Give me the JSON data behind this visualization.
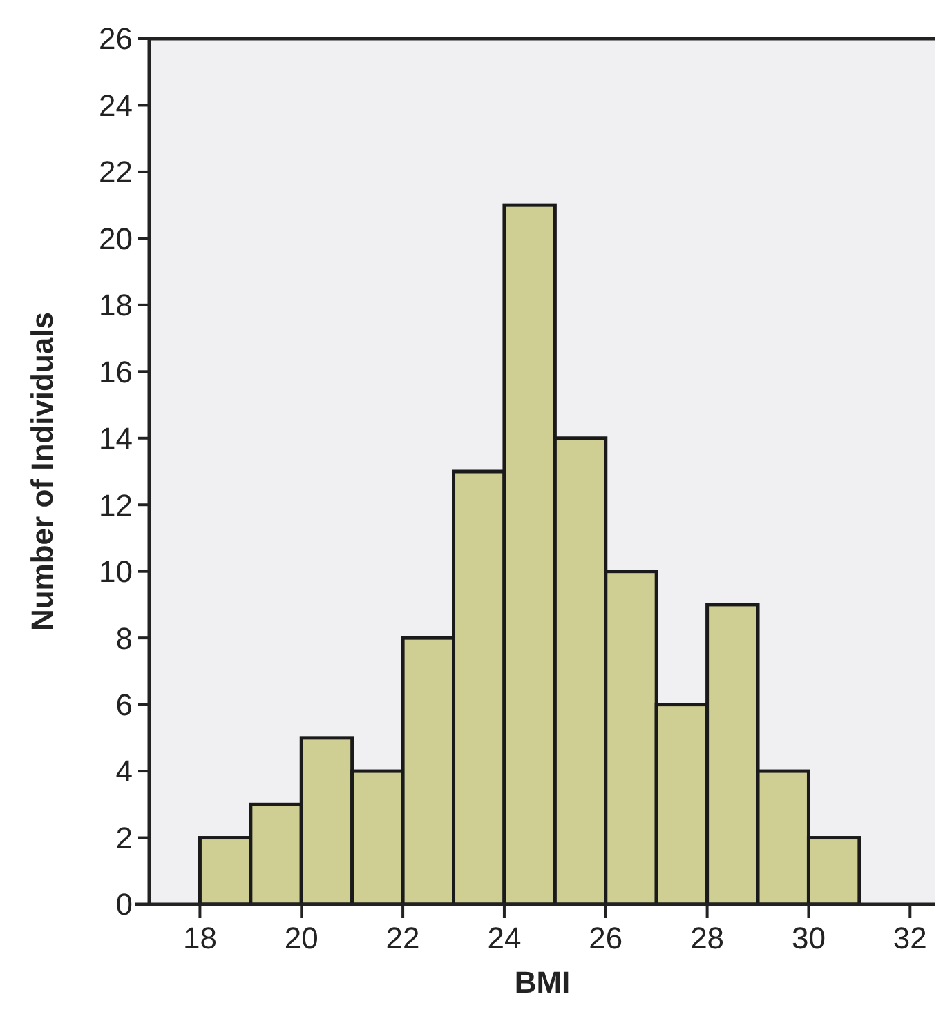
{
  "chart_data": {
    "type": "histogram",
    "xlabel": "BMI",
    "ylabel": "Number of Individuals",
    "bins": [
      18,
      19,
      20,
      21,
      22,
      23,
      24,
      25,
      26,
      27,
      28,
      29,
      30,
      31
    ],
    "values": [
      2,
      3,
      5,
      4,
      8,
      13,
      21,
      14,
      10,
      6,
      9,
      4,
      2
    ],
    "color": "#cfcf94",
    "xlim": [
      17,
      32.5
    ],
    "xticks": [
      18,
      20,
      22,
      24,
      26,
      28,
      30,
      32
    ],
    "ylim": [
      0,
      26
    ],
    "yticks": [
      0,
      2,
      4,
      6,
      8,
      10,
      12,
      14,
      16,
      18,
      20,
      22,
      24,
      26
    ],
    "grid": false
  }
}
